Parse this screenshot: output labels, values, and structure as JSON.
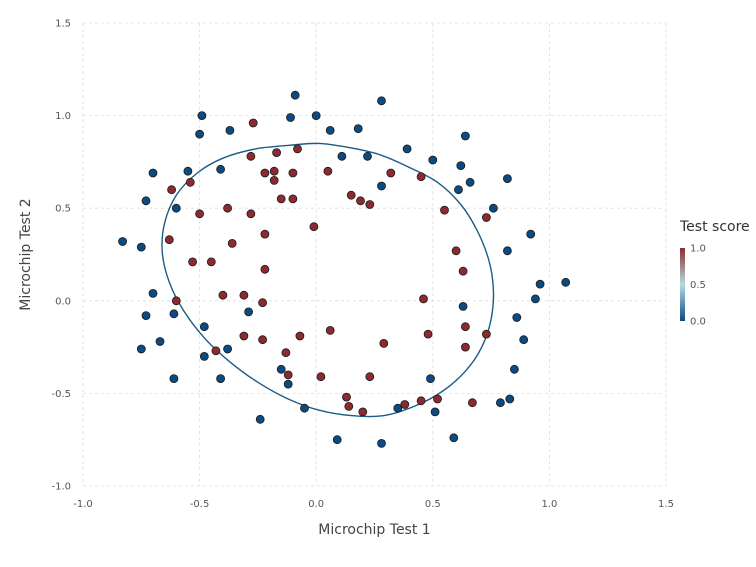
{
  "chart_data": {
    "type": "scatter",
    "title": "",
    "xlabel": "Microchip Test 1",
    "ylabel": "Microchip Test 2",
    "xlim": [
      -1.0,
      1.5
    ],
    "ylim": [
      -1.0,
      1.5
    ],
    "xticks": [
      -1.0,
      -0.5,
      0.0,
      0.5,
      1.0,
      1.5
    ],
    "yticks": [
      -1.0,
      -0.5,
      0.0,
      0.5,
      1.0,
      1.5
    ],
    "xtick_labels": [
      "-1.0",
      "-0.5",
      "0.0",
      "0.5",
      "1.0",
      "1.5"
    ],
    "ytick_labels": [
      "-1.0",
      "-0.5",
      "0.0",
      "0.5",
      "1.0",
      "1.5"
    ],
    "grid": true,
    "legend": {
      "title": "Test score",
      "placement": "right",
      "type": "colorbar",
      "range": [
        0.0,
        1.0
      ],
      "ticks": [
        1.0,
        0.5,
        0.0
      ],
      "tick_labels": [
        "1.0",
        "0.5",
        "0.0"
      ],
      "colors": [
        "#0c4a82",
        "#b8dbe0",
        "#8c2a2f"
      ]
    },
    "colors": {
      "accepted": "#8c2a2f",
      "rejected": "#0c4a82",
      "boundary": "#1a5c87"
    },
    "series": [
      {
        "value": 1,
        "points": [
          [
            -0.22,
            0.69
          ],
          [
            -0.08,
            0.82
          ],
          [
            -0.28,
            0.78
          ],
          [
            -0.17,
            0.8
          ],
          [
            0.05,
            0.7
          ],
          [
            0.32,
            0.69
          ],
          [
            0.45,
            0.67
          ],
          [
            0.19,
            0.54
          ],
          [
            0.15,
            0.57
          ],
          [
            0.23,
            0.52
          ],
          [
            -0.62,
            0.6
          ],
          [
            -0.54,
            0.64
          ],
          [
            -0.5,
            0.47
          ],
          [
            -0.38,
            0.5
          ],
          [
            -0.28,
            0.47
          ],
          [
            -0.15,
            0.55
          ],
          [
            -0.1,
            0.55
          ],
          [
            -0.18,
            0.65
          ],
          [
            -0.1,
            0.69
          ],
          [
            -0.18,
            0.7
          ],
          [
            -0.01,
            0.4
          ],
          [
            -0.22,
            0.36
          ],
          [
            -0.36,
            0.31
          ],
          [
            -0.53,
            0.21
          ],
          [
            -0.45,
            0.21
          ],
          [
            -0.22,
            0.17
          ],
          [
            -0.6,
            0.0
          ],
          [
            -0.4,
            0.03
          ],
          [
            -0.31,
            0.03
          ],
          [
            -0.23,
            -0.01
          ],
          [
            -0.63,
            0.33
          ],
          [
            -0.31,
            -0.19
          ],
          [
            -0.43,
            -0.27
          ],
          [
            -0.23,
            -0.21
          ],
          [
            -0.13,
            -0.28
          ],
          [
            -0.12,
            -0.4
          ],
          [
            -0.07,
            -0.19
          ],
          [
            0.06,
            -0.16
          ],
          [
            0.02,
            -0.41
          ],
          [
            0.13,
            -0.52
          ],
          [
            0.23,
            -0.41
          ],
          [
            0.29,
            -0.23
          ],
          [
            0.48,
            -0.18
          ],
          [
            0.46,
            0.01
          ],
          [
            0.55,
            0.49
          ],
          [
            0.6,
            0.27
          ],
          [
            0.63,
            0.16
          ],
          [
            0.64,
            -0.14
          ],
          [
            0.64,
            -0.25
          ],
          [
            0.73,
            -0.18
          ],
          [
            0.73,
            0.45
          ],
          [
            0.45,
            -0.54
          ],
          [
            0.38,
            -0.56
          ],
          [
            0.52,
            -0.53
          ],
          [
            0.67,
            -0.55
          ],
          [
            0.2,
            -0.6
          ],
          [
            -0.27,
            0.96
          ],
          [
            0.14,
            -0.57
          ]
        ]
      },
      {
        "value": 0,
        "points": [
          [
            -0.09,
            1.11
          ],
          [
            -0.49,
            1.0
          ],
          [
            -0.37,
            0.92
          ],
          [
            -0.5,
            0.9
          ],
          [
            -0.11,
            0.99
          ],
          [
            0.0,
            1.0
          ],
          [
            0.06,
            0.92
          ],
          [
            0.18,
            0.93
          ],
          [
            0.28,
            1.08
          ],
          [
            0.39,
            0.82
          ],
          [
            0.5,
            0.76
          ],
          [
            0.62,
            0.73
          ],
          [
            0.64,
            0.89
          ],
          [
            0.66,
            0.64
          ],
          [
            0.61,
            0.6
          ],
          [
            0.76,
            0.5
          ],
          [
            0.82,
            0.66
          ],
          [
            0.82,
            0.27
          ],
          [
            0.92,
            0.36
          ],
          [
            0.96,
            0.09
          ],
          [
            0.94,
            0.01
          ],
          [
            1.07,
            0.1
          ],
          [
            0.86,
            -0.09
          ],
          [
            0.89,
            -0.21
          ],
          [
            0.85,
            -0.37
          ],
          [
            0.83,
            -0.53
          ],
          [
            0.79,
            -0.55
          ],
          [
            0.63,
            -0.03
          ],
          [
            0.49,
            -0.42
          ],
          [
            0.51,
            -0.6
          ],
          [
            0.59,
            -0.74
          ],
          [
            0.35,
            -0.58
          ],
          [
            0.28,
            -0.77
          ],
          [
            0.09,
            -0.75
          ],
          [
            -0.05,
            -0.58
          ],
          [
            -0.24,
            -0.64
          ],
          [
            -0.12,
            -0.45
          ],
          [
            -0.15,
            -0.37
          ],
          [
            -0.38,
            -0.26
          ],
          [
            -0.41,
            -0.42
          ],
          [
            -0.48,
            -0.3
          ],
          [
            -0.48,
            -0.14
          ],
          [
            -0.61,
            -0.07
          ],
          [
            -0.61,
            -0.42
          ],
          [
            -0.67,
            -0.22
          ],
          [
            -0.75,
            -0.26
          ],
          [
            -0.73,
            -0.08
          ],
          [
            -0.7,
            0.04
          ],
          [
            -0.75,
            0.29
          ],
          [
            -0.83,
            0.32
          ],
          [
            -0.73,
            0.54
          ],
          [
            -0.7,
            0.69
          ],
          [
            -0.55,
            0.7
          ],
          [
            -0.41,
            0.71
          ],
          [
            -0.6,
            0.5
          ],
          [
            -0.29,
            -0.06
          ],
          [
            0.11,
            0.78
          ],
          [
            0.22,
            0.78
          ],
          [
            0.28,
            0.62
          ]
        ]
      }
    ],
    "decision_boundary": {
      "type": "line",
      "closed": true,
      "points": [
        [
          -0.11,
          0.84
        ],
        [
          0.01,
          0.85
        ],
        [
          0.13,
          0.83
        ],
        [
          0.27,
          0.79
        ],
        [
          0.4,
          0.72
        ],
        [
          0.52,
          0.64
        ],
        [
          0.62,
          0.52
        ],
        [
          0.69,
          0.38
        ],
        [
          0.74,
          0.22
        ],
        [
          0.76,
          0.06
        ],
        [
          0.75,
          -0.1
        ],
        [
          0.71,
          -0.25
        ],
        [
          0.64,
          -0.38
        ],
        [
          0.54,
          -0.49
        ],
        [
          0.42,
          -0.57
        ],
        [
          0.29,
          -0.62
        ],
        [
          0.15,
          -0.62
        ],
        [
          0.01,
          -0.59
        ],
        [
          -0.12,
          -0.53
        ],
        [
          -0.25,
          -0.44
        ],
        [
          -0.37,
          -0.33
        ],
        [
          -0.48,
          -0.2
        ],
        [
          -0.57,
          -0.05
        ],
        [
          -0.63,
          0.1
        ],
        [
          -0.66,
          0.26
        ],
        [
          -0.65,
          0.42
        ],
        [
          -0.6,
          0.57
        ],
        [
          -0.51,
          0.69
        ],
        [
          -0.4,
          0.77
        ],
        [
          -0.26,
          0.82
        ],
        [
          -0.11,
          0.84
        ]
      ]
    }
  }
}
